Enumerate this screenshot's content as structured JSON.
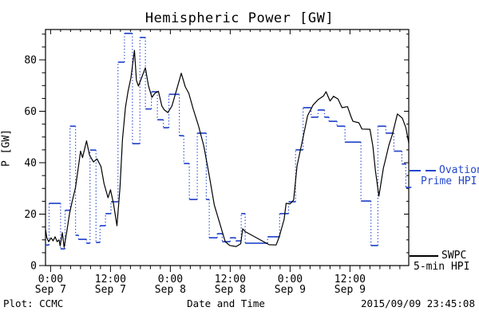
{
  "header": {
    "title": "Hemispheric Power [GW]"
  },
  "footer": {
    "credit": "Plot: CCMC",
    "timestamp": "2015/09/09 23:45:08"
  },
  "legend": {
    "ovation": {
      "line1": "Ovation",
      "line2": "Prime HPI",
      "color": "#2547cc"
    },
    "swpc": {
      "line1": "SWPC",
      "line2": "5-min HPI",
      "color": "#000000"
    }
  },
  "chart_data": {
    "type": "line",
    "title": "Hemispheric Power [GW]",
    "xlabel": "Date and Time",
    "ylabel": "P [GW]",
    "grid": false,
    "legend_position": "right-outside",
    "x_axis": {
      "unit": "hours from 2015-09-07 00:00",
      "tmin": -1.02,
      "tmax": 71.78,
      "minor_step": 2,
      "major": [
        {
          "t": 0,
          "time": "0:00",
          "date": "Sep 7"
        },
        {
          "t": 12,
          "time": "12:00",
          "date": "Sep 7"
        },
        {
          "t": 24,
          "time": "0:00",
          "date": "Sep 8"
        },
        {
          "t": 36,
          "time": "12:00",
          "date": "Sep 8"
        },
        {
          "t": 48,
          "time": "0:00",
          "date": "Sep 9"
        },
        {
          "t": 60,
          "time": "12:00",
          "date": "Sep 9"
        }
      ]
    },
    "y_axis": {
      "vmin": 0,
      "vmax": 91.8,
      "major": [
        0,
        20,
        40,
        60,
        80
      ],
      "minor_step": 5
    },
    "series": [
      {
        "name": "Ovation Prime HPI",
        "color": "#2547cc",
        "style": "stepped-dotted",
        "end_t": 72.3,
        "points": [
          [
            -1.0,
            8.0
          ],
          [
            -0.3,
            24.2
          ],
          [
            2.0,
            6.5
          ],
          [
            2.9,
            21.5
          ],
          [
            3.9,
            54.2
          ],
          [
            5.0,
            11.8
          ],
          [
            5.6,
            10.2
          ],
          [
            7.2,
            8.7
          ],
          [
            7.9,
            44.9
          ],
          [
            9.1,
            9.0
          ],
          [
            9.9,
            15.5
          ],
          [
            11.0,
            20.2
          ],
          [
            12.1,
            24.8
          ],
          [
            13.5,
            79.1
          ],
          [
            14.8,
            90.3
          ],
          [
            16.4,
            47.4
          ],
          [
            17.9,
            88.7
          ],
          [
            19.0,
            60.9
          ],
          [
            20.2,
            67.6
          ],
          [
            21.4,
            56.7
          ],
          [
            22.6,
            53.6
          ],
          [
            23.7,
            66.6
          ],
          [
            25.8,
            50.5
          ],
          [
            26.7,
            39.7
          ],
          [
            27.8,
            25.7
          ],
          [
            29.4,
            51.5
          ],
          [
            31.2,
            25.7
          ],
          [
            31.8,
            10.8
          ],
          [
            33.4,
            12.4
          ],
          [
            34.4,
            9.3
          ],
          [
            36.0,
            10.8
          ],
          [
            37.1,
            9.6
          ],
          [
            38.2,
            20.2
          ],
          [
            39.0,
            8.7
          ],
          [
            43.5,
            11.2
          ],
          [
            45.9,
            20.2
          ],
          [
            47.7,
            24.8
          ],
          [
            49.1,
            45.0
          ],
          [
            50.6,
            61.4
          ],
          [
            52.2,
            57.7
          ],
          [
            53.6,
            60.5
          ],
          [
            54.9,
            57.7
          ],
          [
            55.8,
            56.1
          ],
          [
            57.4,
            54.2
          ],
          [
            59.0,
            48.0
          ],
          [
            62.2,
            25.1
          ],
          [
            64.2,
            7.8
          ],
          [
            65.6,
            54.2
          ],
          [
            67.2,
            51.5
          ],
          [
            68.8,
            44.5
          ],
          [
            70.4,
            39.5
          ],
          [
            71.2,
            30.4
          ]
        ]
      },
      {
        "name": "SWPC 5-min HPI",
        "color": "#000000",
        "style": "solid",
        "points": [
          [
            -1.0,
            13.9
          ],
          [
            -0.75,
            10.8
          ],
          [
            -0.4,
            9.3
          ],
          [
            0.1,
            10.8
          ],
          [
            0.5,
            9.6
          ],
          [
            0.9,
            11.2
          ],
          [
            1.3,
            9.3
          ],
          [
            1.7,
            10.0
          ],
          [
            1.9,
            7.7
          ],
          [
            2.35,
            12.8
          ],
          [
            2.7,
            7.1
          ],
          [
            3.25,
            13.3
          ],
          [
            3.8,
            20.2
          ],
          [
            4.3,
            24.8
          ],
          [
            5.0,
            30.4
          ],
          [
            5.6,
            38.8
          ],
          [
            6.0,
            44.5
          ],
          [
            6.4,
            42.0
          ],
          [
            6.9,
            46.0
          ],
          [
            7.2,
            48.5
          ],
          [
            7.8,
            43.0
          ],
          [
            8.6,
            40.3
          ],
          [
            9.3,
            41.5
          ],
          [
            10.1,
            38.5
          ],
          [
            10.7,
            31.9
          ],
          [
            11.5,
            26.4
          ],
          [
            12.0,
            29.5
          ],
          [
            12.6,
            24.2
          ],
          [
            13.3,
            15.5
          ],
          [
            13.9,
            30.4
          ],
          [
            14.4,
            49.0
          ],
          [
            15.0,
            61.4
          ],
          [
            15.5,
            67.6
          ],
          [
            16.1,
            73.0
          ],
          [
            16.8,
            83.7
          ],
          [
            17.2,
            72.0
          ],
          [
            17.6,
            69.8
          ],
          [
            19.0,
            76.9
          ],
          [
            19.6,
            70.0
          ],
          [
            20.3,
            65.4
          ],
          [
            20.9,
            67.0
          ],
          [
            21.6,
            67.8
          ],
          [
            22.3,
            62.0
          ],
          [
            22.8,
            60.5
          ],
          [
            23.5,
            59.5
          ],
          [
            24.3,
            62.0
          ],
          [
            25.2,
            68.0
          ],
          [
            26.2,
            74.8
          ],
          [
            27.0,
            69.5
          ],
          [
            27.7,
            67.0
          ],
          [
            28.6,
            60.8
          ],
          [
            29.6,
            54.6
          ],
          [
            30.7,
            46.5
          ],
          [
            31.8,
            35.0
          ],
          [
            32.8,
            23.6
          ],
          [
            33.9,
            16.4
          ],
          [
            35.0,
            9.3
          ],
          [
            35.9,
            7.8
          ],
          [
            37.2,
            7.4
          ],
          [
            38.1,
            8.5
          ],
          [
            38.5,
            14.3
          ],
          [
            39.0,
            13.2
          ],
          [
            43.8,
            8.1
          ],
          [
            45.2,
            8.0
          ],
          [
            45.8,
            11.0
          ],
          [
            46.8,
            18.0
          ],
          [
            47.2,
            24.2
          ],
          [
            48.0,
            24.0
          ],
          [
            48.7,
            25.5
          ],
          [
            49.4,
            38.8
          ],
          [
            50.4,
            48.0
          ],
          [
            51.5,
            58.3
          ],
          [
            52.6,
            62.4
          ],
          [
            53.6,
            64.5
          ],
          [
            54.7,
            66.0
          ],
          [
            55.2,
            67.6
          ],
          [
            56.0,
            64.0
          ],
          [
            56.7,
            65.8
          ],
          [
            57.6,
            64.8
          ],
          [
            58.4,
            61.4
          ],
          [
            59.5,
            61.8
          ],
          [
            60.2,
            58.0
          ],
          [
            60.6,
            56.1
          ],
          [
            61.8,
            55.5
          ],
          [
            62.4,
            53.1
          ],
          [
            64.0,
            53.0
          ],
          [
            64.6,
            46.4
          ],
          [
            65.1,
            37.1
          ],
          [
            65.8,
            27.0
          ],
          [
            66.7,
            38.0
          ],
          [
            67.2,
            41.9
          ],
          [
            67.8,
            46.8
          ],
          [
            68.5,
            51.0
          ],
          [
            69.5,
            59.0
          ],
          [
            70.5,
            57.3
          ],
          [
            71.2,
            53.6
          ],
          [
            71.8,
            47.5
          ]
        ]
      }
    ]
  }
}
